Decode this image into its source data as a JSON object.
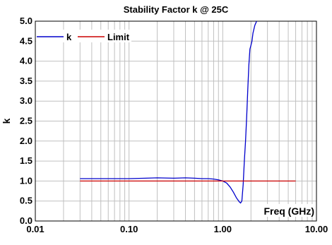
{
  "chart_data": {
    "type": "line",
    "title": "Stability Factor k @ 25C",
    "xlabel": "Freq (GHz)",
    "ylabel": "k",
    "x_scale": "log",
    "xlim": [
      0.01,
      10
    ],
    "ylim": [
      0,
      5
    ],
    "x_ticks": [
      "0.01",
      "0.10",
      "1.00",
      "10.00"
    ],
    "y_ticks": [
      "0.0",
      "0.5",
      "1.0",
      "1.5",
      "2.0",
      "2.5",
      "3.0",
      "3.5",
      "4.0",
      "4.5",
      "5.0"
    ],
    "grid": true,
    "legend_position": "top-left",
    "series": [
      {
        "name": "k",
        "color": "#0000cc",
        "x": [
          0.03,
          0.06,
          0.1,
          0.15,
          0.2,
          0.3,
          0.4,
          0.5,
          0.6,
          0.7,
          0.8,
          0.9,
          1.0,
          1.1,
          1.2,
          1.3,
          1.4,
          1.5,
          1.55,
          1.6,
          1.65,
          1.7,
          1.75,
          1.8,
          1.85,
          1.9,
          1.95,
          2.0,
          2.05,
          2.1,
          2.2,
          2.3
        ],
        "y": [
          1.06,
          1.06,
          1.06,
          1.07,
          1.08,
          1.07,
          1.08,
          1.07,
          1.06,
          1.06,
          1.05,
          1.03,
          1.0,
          0.95,
          0.85,
          0.72,
          0.58,
          0.48,
          0.45,
          0.5,
          0.9,
          1.5,
          2.0,
          2.6,
          3.3,
          3.9,
          4.3,
          4.4,
          4.5,
          4.7,
          4.9,
          5.0
        ]
      },
      {
        "name": "Limit",
        "color": "#cc0000",
        "x": [
          0.03,
          6.0
        ],
        "y": [
          1.0,
          1.0
        ]
      }
    ]
  }
}
